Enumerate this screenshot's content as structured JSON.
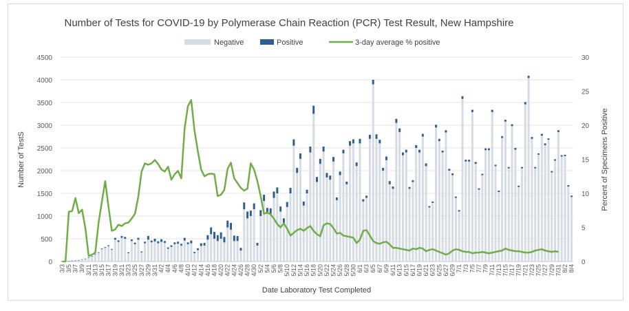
{
  "chart_data": {
    "type": "bar",
    "title": "Number of Tests for COVID-19 by Polymerase Chain Reaction (PCR) Test Result, New Hampshire",
    "xlabel": "Date Laboratory Test Completed",
    "ylabel": "Number of TestS",
    "y2label": "Percent of Specimens Positive",
    "ylim": [
      0,
      4500
    ],
    "y2lim": [
      0,
      30
    ],
    "y_ticks": [
      0,
      500,
      1000,
      1500,
      2000,
      2500,
      3000,
      3500,
      4000,
      4500
    ],
    "y2_ticks": [
      0,
      5,
      10,
      15,
      20,
      25,
      30
    ],
    "x_ticks": [
      "3/3",
      "3/5",
      "3/7",
      "3/9",
      "3/11",
      "3/13",
      "3/15",
      "3/17",
      "3/19",
      "3/21",
      "3/23",
      "3/25",
      "3/27",
      "3/29",
      "3/31",
      "4/2",
      "4/4",
      "4/6",
      "4/8",
      "4/10",
      "4/12",
      "4/14",
      "4/16",
      "4/18",
      "4/20",
      "4/22",
      "4/24",
      "4/26",
      "4/28",
      "4/30",
      "5/2",
      "5/4",
      "5/6",
      "5/8",
      "5/10",
      "5/12",
      "5/14",
      "5/16",
      "5/18",
      "5/20",
      "5/22",
      "5/24",
      "5/26",
      "5/28",
      "5/30",
      "6/1",
      "6/3",
      "6/5",
      "6/7",
      "6/9",
      "6/11",
      "6/13",
      "6/15",
      "6/17",
      "6/19",
      "6/21",
      "6/23",
      "6/25",
      "6/27",
      "6/29",
      "7/1",
      "7/3",
      "7/5",
      "7/7",
      "7/9",
      "7/11",
      "7/13",
      "7/15",
      "7/17",
      "7/19",
      "7/21",
      "7/23",
      "7/25",
      "7/27",
      "7/29",
      "7/31",
      "8/2",
      "8/4"
    ],
    "legend": [
      "Negative",
      "Positive",
      "3-day average % positive"
    ],
    "legend_position": "top",
    "grid": true,
    "colors": {
      "negative": "#d6dce5",
      "positive": "#2e5f8f",
      "line": "#70ad47"
    },
    "series": [
      {
        "name": "Negative",
        "values": [
          0,
          2,
          8,
          18,
          20,
          25,
          45,
          60,
          85,
          110,
          150,
          190,
          270,
          300,
          340,
          260,
          480,
          430,
          520,
          500,
          180,
          450,
          380,
          480,
          200,
          400,
          480,
          420,
          440,
          400,
          430,
          410,
          280,
          320,
          380,
          390,
          350,
          460,
          380,
          400,
          180,
          250,
          340,
          350,
          480,
          600,
          500,
          450,
          500,
          420,
          750,
          700,
          450,
          450,
          240,
          1150,
          950,
          1000,
          1150,
          350,
          1000,
          1330,
          1050,
          1050,
          1400,
          1500,
          1100,
          850,
          1200,
          1500,
          2550,
          1950,
          2260,
          1230,
          1500,
          2400,
          3250,
          1750,
          2150,
          2420,
          1850,
          1800,
          2200,
          1350,
          1900,
          2380,
          1700,
          2550,
          2600,
          2100,
          2600,
          1320,
          1400,
          2700,
          3900,
          2700,
          2600,
          2000,
          2230,
          1700,
          1600,
          3050,
          2850,
          2340,
          2400,
          1600,
          1750,
          2500,
          2400,
          2750,
          2100,
          1190,
          1290,
          2950,
          2650,
          2400,
          2840,
          2000,
          1900,
          1400,
          1100,
          3580,
          2200,
          2200,
          3290,
          2150,
          1580,
          1900,
          2450,
          2450,
          3290,
          2100,
          1530,
          2720,
          3080,
          2050,
          2980,
          2460,
          1640,
          2050,
          3460,
          4040,
          2700,
          2050,
          2350,
          2770,
          2560,
          2680,
          1960,
          2220,
          2850,
          2310,
          2320,
          1650,
          1420
        ]
      },
      {
        "name": "Positive",
        "values": [
          0,
          0,
          1,
          1,
          2,
          1,
          3,
          4,
          6,
          8,
          10,
          12,
          15,
          16,
          18,
          15,
          40,
          35,
          40,
          40,
          20,
          35,
          35,
          40,
          20,
          35,
          80,
          40,
          60,
          45,
          60,
          40,
          30,
          35,
          40,
          45,
          40,
          60,
          40,
          60,
          30,
          40,
          60,
          60,
          100,
          150,
          150,
          130,
          140,
          120,
          150,
          150,
          120,
          110,
          60,
          150,
          150,
          120,
          130,
          60,
          130,
          140,
          130,
          120,
          140,
          130,
          110,
          100,
          110,
          120,
          140,
          110,
          120,
          90,
          80,
          130,
          180,
          110,
          110,
          110,
          100,
          90,
          100,
          60,
          80,
          80,
          60,
          100,
          90,
          80,
          100,
          50,
          50,
          90,
          100,
          100,
          80,
          60,
          80,
          70,
          50,
          90,
          80,
          60,
          60,
          40,
          40,
          60,
          60,
          60,
          60,
          30,
          30,
          60,
          50,
          40,
          50,
          40,
          40,
          30,
          30,
          60,
          40,
          40,
          50,
          40,
          30,
          30,
          40,
          40,
          50,
          30,
          30,
          40,
          40,
          30,
          40,
          40,
          30,
          30,
          50,
          50,
          40,
          30,
          30,
          40,
          40,
          30,
          30,
          30,
          40,
          30,
          30,
          30,
          30
        ]
      },
      {
        "name": "3-day average % positive",
        "values": [
          0,
          0,
          7.3,
          7.4,
          9.3,
          7.1,
          7.6,
          4.9,
          0.8,
          1.0,
          1.3,
          5.7,
          8.8,
          11.8,
          8.0,
          4.5,
          4.7,
          5.4,
          5.2,
          5.6,
          5.7,
          6.3,
          7.0,
          9.5,
          13.2,
          14.4,
          14.2,
          14.4,
          14.9,
          14.3,
          13.5,
          13.2,
          13.9,
          12.0,
          12.8,
          13.3,
          12.2,
          19.5,
          22.8,
          23.7,
          19.2,
          16.2,
          13.5,
          12.5,
          12.8,
          12.9,
          12.8,
          9.6,
          9.8,
          10.5,
          13.6,
          14.5,
          12.2,
          11.5,
          10.8,
          10.4,
          10.7,
          14.4,
          13.5,
          11.8,
          9.6,
          7.0,
          7.2,
          6.9,
          6.3,
          5.5,
          5.0,
          5.6,
          4.8,
          3.8,
          4.2,
          4.6,
          4.8,
          4.5,
          4.9,
          5.2,
          4.5,
          4.0,
          3.7,
          5.3,
          5.6,
          5.5,
          4.9,
          4.1,
          4.2,
          3.8,
          3.7,
          3.6,
          3.5,
          2.7,
          3.2,
          4.5,
          4.6,
          3.8,
          3.0,
          2.7,
          2.6,
          2.8,
          2.9,
          2.5,
          2.0,
          2.0,
          1.9,
          1.8,
          1.7,
          1.6,
          1.9,
          1.8,
          2.0,
          1.9,
          1.5,
          1.7,
          1.8,
          1.6,
          1.4,
          1.2,
          1.0,
          1.2,
          1.6,
          1.8,
          1.7,
          1.5,
          1.4,
          1.4,
          1.2,
          1.3,
          1.3,
          1.4,
          1.3,
          1.2,
          1.3,
          1.4,
          1.5,
          1.6,
          1.9,
          1.7,
          1.6,
          1.5,
          1.5,
          1.4,
          1.3,
          1.3,
          1.4,
          1.6,
          1.7,
          1.8,
          1.6,
          1.5,
          1.4,
          1.5,
          1.4
        ]
      }
    ]
  }
}
